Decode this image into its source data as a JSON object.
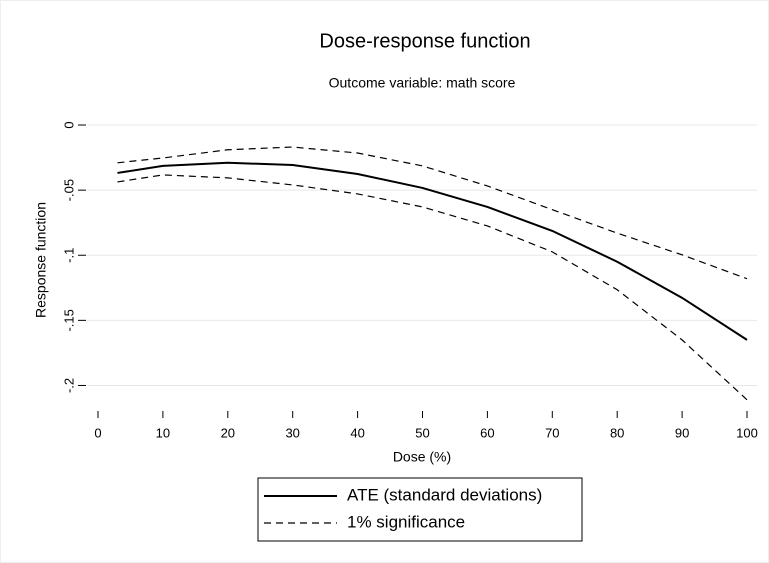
{
  "chart_data": {
    "type": "line",
    "title": "Dose-response function",
    "subtitle": "Outcome variable: math score",
    "xlabel": "Dose (%)",
    "ylabel": "Response function",
    "x": [
      3,
      10,
      20,
      30,
      40,
      50,
      60,
      70,
      80,
      90,
      100
    ],
    "series": [
      {
        "name": "ATE (standard deviations)",
        "color": "#000000",
        "dash": false,
        "values": [
          -0.0368,
          -0.0314,
          -0.029,
          -0.0307,
          -0.0376,
          -0.0483,
          -0.0629,
          -0.0813,
          -0.105,
          -0.1327,
          -0.165
        ]
      },
      {
        "name": "1% significance",
        "color": "#000000",
        "dash": true,
        "values": [
          -0.029,
          -0.0253,
          -0.019,
          -0.0169,
          -0.0215,
          -0.0314,
          -0.0468,
          -0.065,
          -0.083,
          -0.0997,
          -0.118
        ],
        "lower": [
          -0.0437,
          -0.0383,
          -0.0406,
          -0.046,
          -0.0529,
          -0.0629,
          -0.0775,
          -0.0974,
          -0.1265,
          -0.165,
          -0.211
        ]
      }
    ],
    "xlim": [
      0,
      100
    ],
    "xticks": [
      0,
      10,
      20,
      30,
      40,
      50,
      60,
      70,
      80,
      90,
      100
    ],
    "ylim": [
      -0.215,
      0.01
    ],
    "yticks": [
      0,
      {
        "value": -0.05,
        "label": "-.05"
      },
      {
        "value": -0.1,
        "label": "-.1"
      },
      {
        "value": -0.15,
        "label": "-.15"
      },
      {
        "value": -0.2,
        "label": "-.2"
      }
    ],
    "grid": true
  }
}
